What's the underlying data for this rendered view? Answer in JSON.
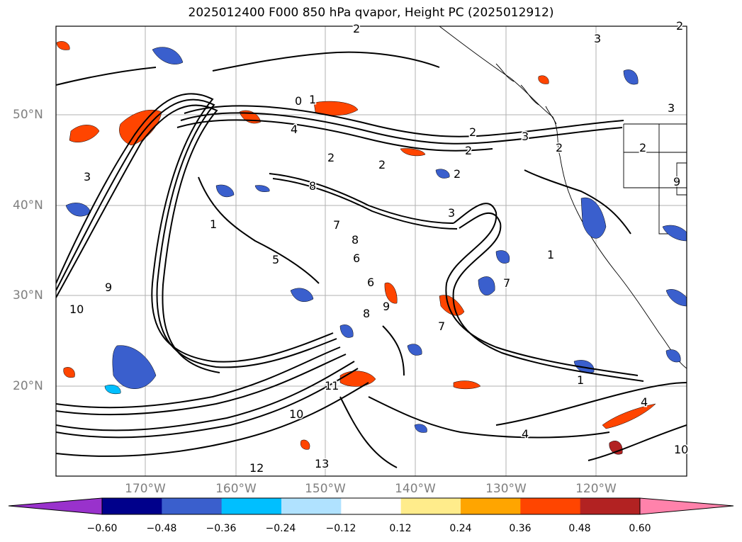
{
  "title": "2025012400 F000 850 hPa qvapor, Height PC (2025012912)",
  "latitude_labels": [
    "50°N",
    "40°N",
    "30°N",
    "20°N"
  ],
  "longitude_labels": [
    "170°W",
    "160°W",
    "150°W",
    "140°W",
    "130°W",
    "120°W"
  ],
  "colorbar": {
    "colors": [
      "#9932cc",
      "#00008b",
      "#3a5fcd",
      "#00bfff",
      "#b0e2ff",
      "#ffffff",
      "#ffec8b",
      "#ffa500",
      "#ff4500",
      "#b22222",
      "#ff82ab"
    ],
    "extend_low_color": "#9932cc",
    "extend_high_color": "#ff82ab",
    "tick_labels": [
      "−0.60",
      "−0.48",
      "−0.36",
      "−0.24",
      "−0.12",
      "0.12",
      "0.24",
      "0.36",
      "0.48",
      "0.60"
    ]
  },
  "contour_labels": [
    "2",
    "3",
    "0",
    "1",
    "2",
    "4",
    "2",
    "3",
    "2",
    "2",
    "3",
    "2",
    "1",
    "2",
    "8",
    "3",
    "1",
    "5",
    "7",
    "9",
    "6",
    "10",
    "11",
    "12",
    "13",
    "8",
    "10",
    "9",
    "7",
    "4",
    "4",
    "9",
    "10",
    "8",
    "6",
    "3",
    "1",
    "2",
    "2",
    "7"
  ],
  "map": {
    "land_color": "#ffffff",
    "grid_color": "#b0b0b0",
    "contour_color": "#000000"
  }
}
